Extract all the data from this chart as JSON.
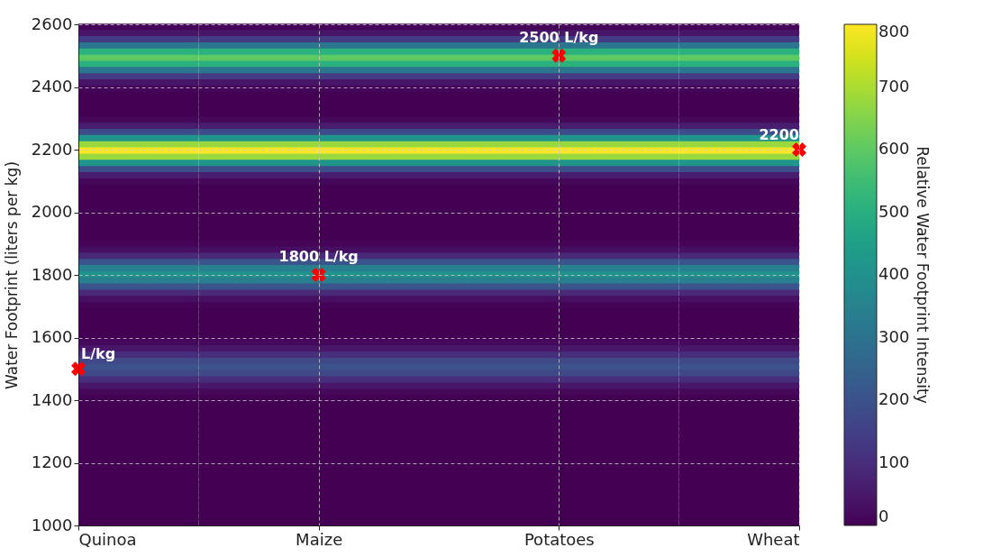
{
  "chart_data": {
    "type": "heatmap",
    "ylabel": "Water Footprint (liters per kg)",
    "clabel": "Relative Water Footprint Intensity",
    "categories": [
      "Quinoa",
      "Maize",
      "Potatoes",
      "Wheat"
    ],
    "cells": [
      [
        10,
        10,
        10,
        10
      ],
      [
        44,
        44,
        44,
        44
      ],
      [
        138,
        138,
        138,
        138
      ],
      [
        313,
        313,
        313,
        313
      ],
      [
        509,
        509,
        509,
        509
      ],
      [
        600,
        600,
        600,
        600
      ],
      [
        509,
        509,
        509,
        509
      ],
      [
        313,
        313,
        313,
        313
      ],
      [
        138,
        138,
        138,
        138
      ],
      [
        44,
        44,
        44,
        44
      ],
      [
        10,
        10,
        10,
        10
      ],
      [
        0,
        0,
        0,
        0
      ],
      [
        0,
        0,
        0,
        0
      ],
      [
        0,
        0,
        0,
        0
      ],
      [
        0,
        0,
        0,
        0
      ],
      [
        14,
        14,
        14,
        14
      ],
      [
        58,
        58,
        58,
        58
      ],
      [
        184,
        184,
        184,
        184
      ],
      [
        417,
        417,
        417,
        417
      ],
      [
        679,
        679,
        679,
        679
      ],
      [
        800,
        800,
        800,
        800
      ],
      [
        679,
        679,
        679,
        679
      ],
      [
        417,
        417,
        417,
        417
      ],
      [
        184,
        184,
        184,
        184
      ],
      [
        58,
        58,
        58,
        58
      ],
      [
        14,
        14,
        14,
        14
      ],
      [
        0,
        0,
        0,
        0
      ],
      [
        0,
        0,
        0,
        0
      ],
      [
        0,
        0,
        0,
        0
      ],
      [
        0,
        0,
        0,
        0
      ],
      [
        0,
        0,
        0,
        0
      ],
      [
        0,
        0,
        0,
        0
      ],
      [
        0,
        0,
        0,
        0
      ],
      [
        0,
        0,
        0,
        0
      ],
      [
        0,
        0,
        0,
        0
      ],
      [
        7,
        7,
        7,
        7
      ],
      [
        29,
        29,
        29,
        29
      ],
      [
        92,
        92,
        92,
        92
      ],
      [
        208,
        208,
        208,
        208
      ],
      [
        340,
        340,
        340,
        340
      ],
      [
        400,
        400,
        400,
        400
      ],
      [
        340,
        340,
        340,
        340
      ],
      [
        208,
        208,
        208,
        208
      ],
      [
        92,
        92,
        92,
        92
      ],
      [
        29,
        29,
        29,
        29
      ],
      [
        7,
        7,
        7,
        7
      ],
      [
        0,
        0,
        0,
        0
      ],
      [
        0,
        0,
        0,
        0
      ],
      [
        0,
        0,
        0,
        0
      ],
      [
        0,
        0,
        0,
        0
      ],
      [
        3,
        3,
        3,
        3
      ],
      [
        15,
        15,
        15,
        15
      ],
      [
        46,
        46,
        46,
        46
      ],
      [
        104,
        104,
        104,
        104
      ],
      [
        170,
        170,
        170,
        170
      ],
      [
        200,
        200,
        200,
        200
      ],
      [
        170,
        170,
        170,
        170
      ],
      [
        104,
        104,
        104,
        104
      ],
      [
        46,
        46,
        46,
        46
      ],
      [
        15,
        15,
        15,
        15
      ],
      [
        3,
        3,
        3,
        3
      ],
      [
        0,
        0,
        0,
        0
      ],
      [
        0,
        0,
        0,
        0
      ],
      [
        0,
        0,
        0,
        0
      ],
      [
        0,
        0,
        0,
        0
      ],
      [
        0,
        0,
        0,
        0
      ],
      [
        0,
        0,
        0,
        0
      ],
      [
        0,
        0,
        0,
        0
      ],
      [
        0,
        0,
        0,
        0
      ],
      [
        0,
        0,
        0,
        0
      ],
      [
        0,
        0,
        0,
        0
      ],
      [
        0,
        0,
        0,
        0
      ],
      [
        0,
        0,
        0,
        0
      ],
      [
        0,
        0,
        0,
        0
      ],
      [
        0,
        0,
        0,
        0
      ],
      [
        0,
        0,
        0,
        0
      ],
      [
        0,
        0,
        0,
        0
      ],
      [
        0,
        0,
        0,
        0
      ],
      [
        0,
        0,
        0,
        0
      ],
      [
        0,
        0,
        0,
        0
      ],
      [
        0,
        0,
        0,
        0
      ]
    ],
    "clim": [
      0,
      800
    ],
    "cticks": [
      0,
      100,
      200,
      300,
      400,
      500,
      600,
      700,
      800
    ],
    "ylim": [
      1000,
      2600
    ],
    "yticks": [
      1000,
      1200,
      1400,
      1600,
      1800,
      2000,
      2200,
      2400,
      2600
    ],
    "grid": true,
    "series": [
      {
        "type": "scatter",
        "color": "#ff0000",
        "marker": "cross",
        "x": [
          "Quinoa",
          "Maize",
          "Potatoes",
          "Wheat"
        ],
        "values": [
          1500,
          1800,
          2500,
          2200
        ]
      }
    ],
    "annotations": [
      "L/kg",
      {
        "text": "1800 L/kg",
        "x": "Maize",
        "y": 1800
      },
      {
        "text": "2500 L/kg",
        "x": "Potatoes",
        "y": 2500
      },
      "2200"
    ]
  }
}
